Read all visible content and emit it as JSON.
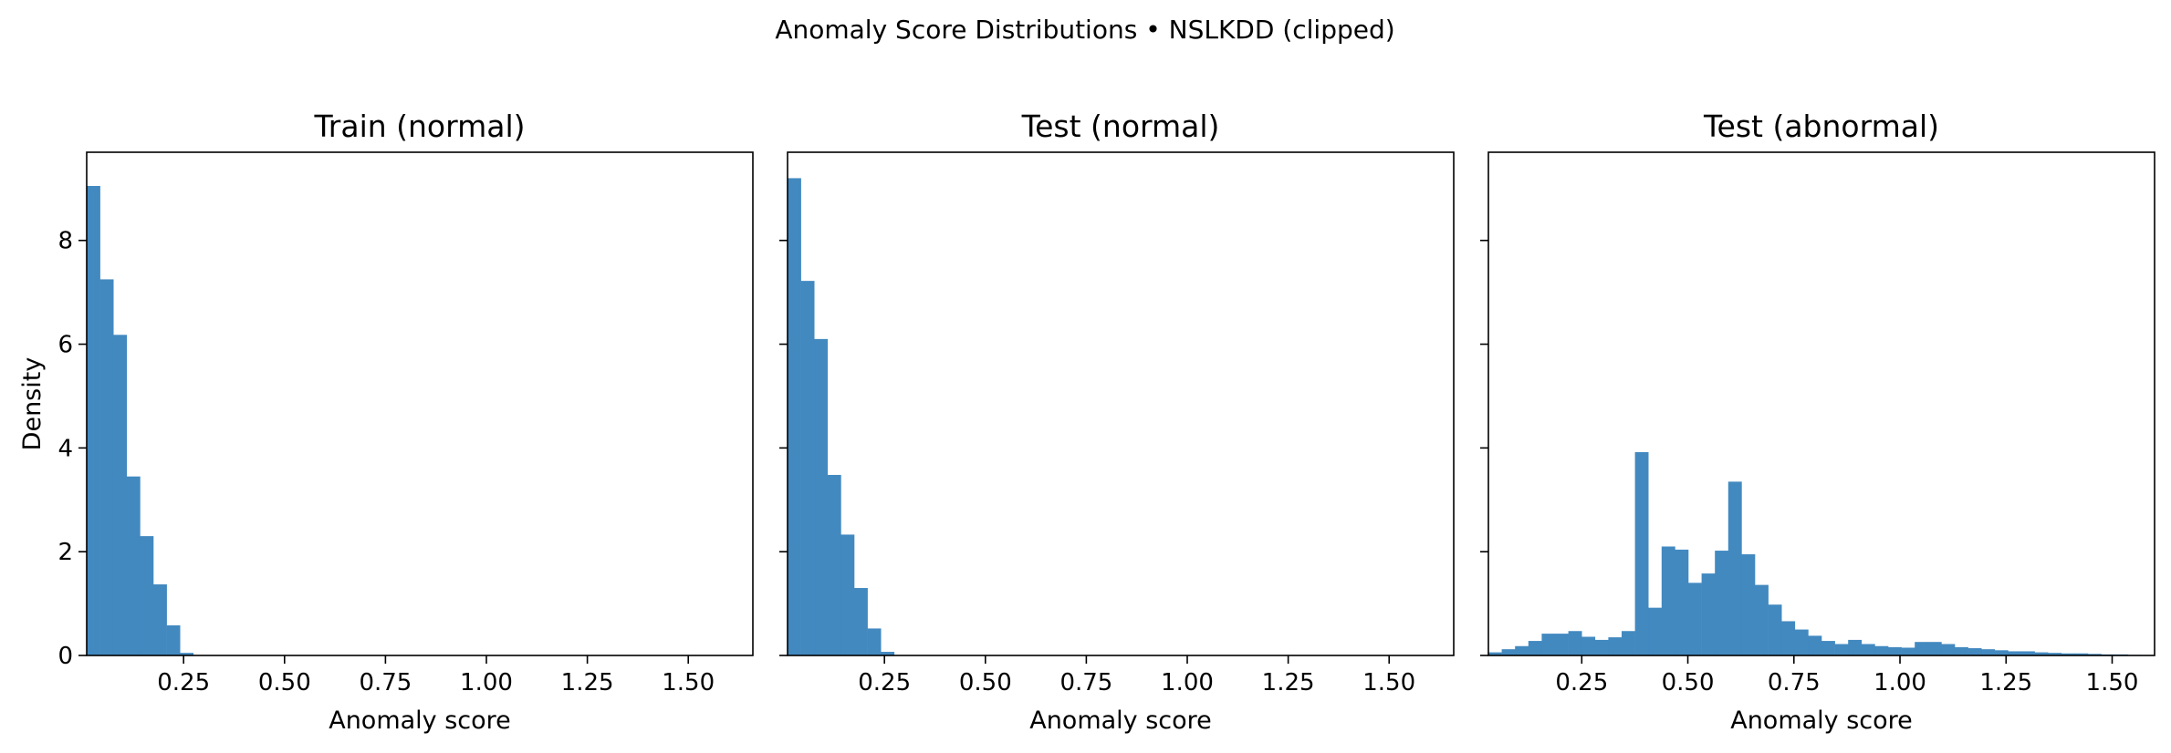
{
  "figure": {
    "suptitle": "Anomaly Score Distributions • NSLKDD (clipped)",
    "bar_color": "#4289c0"
  },
  "chart_data": [
    {
      "type": "bar",
      "title": "Train (normal)",
      "xlabel": "Anomaly score",
      "ylabel": "Density",
      "xlim": [
        0.01,
        1.66
      ],
      "ylim": [
        0,
        9.7
      ],
      "xticks": [
        0.25,
        0.5,
        0.75,
        1.0,
        1.25,
        1.5
      ],
      "xtick_labels": [
        "0.25",
        "0.50",
        "0.75",
        "1.00",
        "1.25",
        "1.50"
      ],
      "yticks": [
        0,
        2,
        4,
        6,
        8
      ],
      "ytick_labels": [
        "0",
        "2",
        "4",
        "6",
        "8"
      ],
      "bin_width": 0.033,
      "bins": [
        0.01,
        0.043,
        0.076,
        0.109,
        0.142,
        0.175,
        0.208,
        0.241
      ],
      "values": [
        9.05,
        7.25,
        6.18,
        3.45,
        2.3,
        1.37,
        0.58,
        0.05
      ]
    },
    {
      "type": "bar",
      "title": "Test (normal)",
      "xlabel": "Anomaly score",
      "ylabel": "",
      "xlim": [
        0.01,
        1.66
      ],
      "ylim": [
        0,
        9.7
      ],
      "xticks": [
        0.25,
        0.5,
        0.75,
        1.0,
        1.25,
        1.5
      ],
      "xtick_labels": [
        "0.25",
        "0.50",
        "0.75",
        "1.00",
        "1.25",
        "1.50"
      ],
      "yticks": [
        0,
        2,
        4,
        6,
        8
      ],
      "ytick_labels": [],
      "bin_width": 0.033,
      "bins": [
        0.01,
        0.043,
        0.076,
        0.109,
        0.142,
        0.175,
        0.208,
        0.241
      ],
      "values": [
        9.2,
        7.22,
        6.1,
        3.48,
        2.33,
        1.3,
        0.52,
        0.07
      ]
    },
    {
      "type": "bar",
      "title": "Test (abnormal)",
      "xlabel": "Anomaly score",
      "ylabel": "",
      "xlim": [
        0.03,
        1.6
      ],
      "ylim": [
        0,
        9.7
      ],
      "xticks": [
        0.25,
        0.5,
        0.75,
        1.0,
        1.25,
        1.5
      ],
      "xtick_labels": [
        "0.25",
        "0.50",
        "0.75",
        "1.00",
        "1.25",
        "1.50"
      ],
      "yticks": [
        0,
        2,
        4,
        6,
        8
      ],
      "ytick_labels": [],
      "bin_width": 0.0314,
      "bins": [
        0.03,
        0.0614,
        0.0928,
        0.1242,
        0.1556,
        0.187,
        0.2184,
        0.2498,
        0.2812,
        0.3126,
        0.344,
        0.3754,
        0.4068,
        0.4382,
        0.4696,
        0.501,
        0.5324,
        0.5638,
        0.5952,
        0.6266,
        0.658,
        0.6894,
        0.7208,
        0.7522,
        0.7836,
        0.815,
        0.8464,
        0.8778,
        0.9092,
        0.9406,
        0.972,
        1.0034,
        1.0348,
        1.0662,
        1.0976,
        1.129,
        1.1604,
        1.1918,
        1.2232,
        1.2546,
        1.286,
        1.3174,
        1.3488,
        1.3802,
        1.4116,
        1.443,
        1.4744,
        1.5058,
        1.5372
      ],
      "values": [
        0.06,
        0.12,
        0.18,
        0.28,
        0.42,
        0.42,
        0.47,
        0.36,
        0.3,
        0.35,
        0.47,
        3.92,
        0.92,
        2.1,
        2.04,
        1.4,
        1.58,
        2.02,
        3.35,
        1.95,
        1.36,
        0.98,
        0.66,
        0.5,
        0.38,
        0.28,
        0.22,
        0.3,
        0.22,
        0.18,
        0.16,
        0.15,
        0.26,
        0.26,
        0.22,
        0.16,
        0.14,
        0.12,
        0.1,
        0.08,
        0.08,
        0.06,
        0.05,
        0.04,
        0.04,
        0.03,
        0.02,
        0.02,
        0.01
      ]
    }
  ]
}
